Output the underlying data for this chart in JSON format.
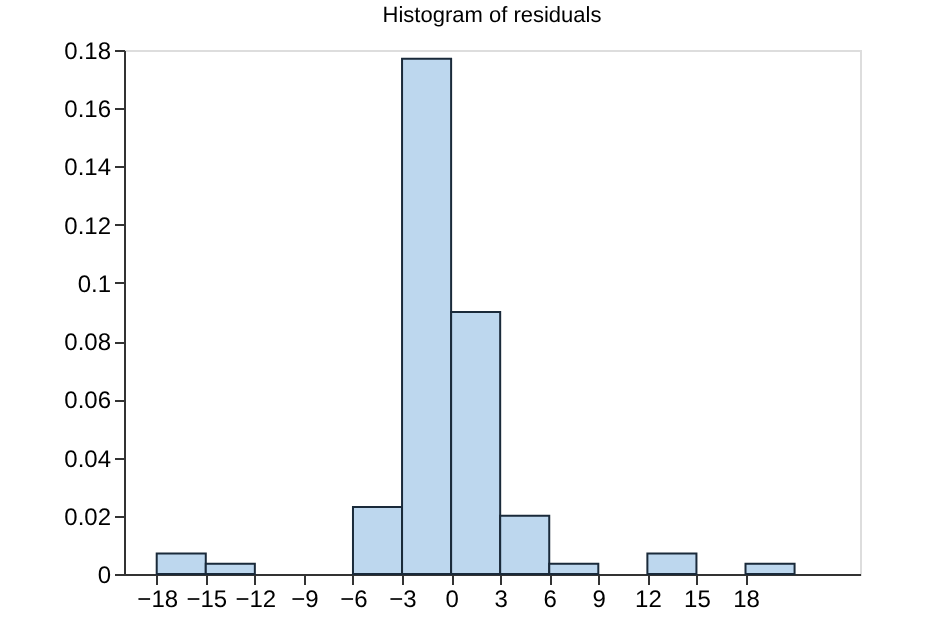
{
  "chart_data": {
    "type": "histogram",
    "title": "Histogram of residuals",
    "bins": [
      -18,
      -15,
      -12,
      -9,
      -6,
      -3,
      0,
      3,
      6,
      9,
      12,
      15,
      18,
      21
    ],
    "values": [
      0.007,
      0.0035,
      0,
      0,
      0.023,
      0.177,
      0.09,
      0.02,
      0.0035,
      0,
      0.007,
      0,
      0.0035
    ],
    "color": "#bdd7ee",
    "xlim": [
      -20,
      25
    ],
    "xticks": [
      -18,
      -15,
      -12,
      -9,
      -6,
      -3,
      0,
      3,
      6,
      9,
      12,
      15,
      18
    ],
    "ylim": [
      0,
      0.18
    ],
    "yticks": [
      0,
      0.02,
      0.04,
      0.06,
      0.08,
      0.1,
      0.12,
      0.14,
      0.16,
      0.18
    ],
    "grid": false
  }
}
